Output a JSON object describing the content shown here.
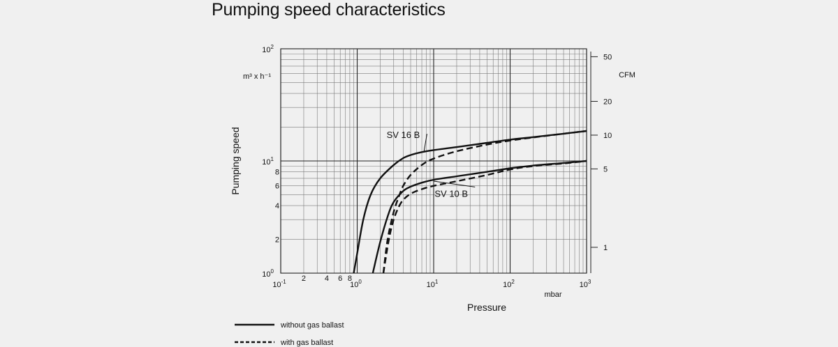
{
  "chart_data": {
    "type": "line",
    "title": "Pumping speed characteristics",
    "xlabel": "Pressure",
    "x_unit": "mbar",
    "ylabel": "Pumping speed",
    "y_unit": "m³ x h⁻¹",
    "y2_unit": "CFM",
    "x_scale": "log",
    "y_scale": "log",
    "xlim": [
      0.1,
      1000
    ],
    "ylim": [
      1,
      100
    ],
    "x_major_ticks": [
      {
        "value": 0.1,
        "base": "10",
        "exp": "-1"
      },
      {
        "value": 1,
        "base": "10",
        "exp": "0"
      },
      {
        "value": 10,
        "base": "10",
        "exp": "1"
      },
      {
        "value": 100,
        "base": "10",
        "exp": "2"
      },
      {
        "value": 1000,
        "base": "10",
        "exp": "3"
      }
    ],
    "x_minor_labels": [
      {
        "value": 0.2,
        "label": "2"
      },
      {
        "value": 0.4,
        "label": "4"
      },
      {
        "value": 0.6,
        "label": "6"
      },
      {
        "value": 0.8,
        "label": "8"
      }
    ],
    "y_major_ticks": [
      {
        "value": 1,
        "base": "10",
        "exp": "0"
      },
      {
        "value": 10,
        "base": "10",
        "exp": "1"
      },
      {
        "value": 100,
        "base": "10",
        "exp": "2"
      }
    ],
    "y_minor_labels": [
      {
        "value": 2,
        "label": "2"
      },
      {
        "value": 4,
        "label": "4"
      },
      {
        "value": 6,
        "label": "6"
      },
      {
        "value": 8,
        "label": "8"
      }
    ],
    "y2_ticks": [
      {
        "cfm": 1,
        "label": "1"
      },
      {
        "cfm": 5,
        "label": "5"
      },
      {
        "cfm": 10,
        "label": "10"
      },
      {
        "cfm": 20,
        "label": "20"
      },
      {
        "cfm": 50,
        "label": "50"
      }
    ],
    "cfm_to_m3h": 1.699,
    "grid": true,
    "series": [
      {
        "name": "SV 16 B",
        "style": "solid",
        "x": [
          0.9,
          1.0,
          1.2,
          1.5,
          2,
          3,
          4,
          5,
          7,
          10,
          20,
          50,
          100,
          200,
          500,
          1000
        ],
        "y": [
          1.0,
          1.5,
          3.0,
          5.0,
          7.0,
          9.2,
          10.6,
          11.3,
          12.0,
          12.5,
          13.3,
          14.5,
          15.5,
          16.3,
          17.5,
          18.5
        ]
      },
      {
        "name": "SV 16 B",
        "style": "dashed",
        "x": [
          2.2,
          2.5,
          3,
          3.5,
          4,
          5,
          7,
          10,
          20,
          50,
          100,
          200,
          500,
          1000
        ],
        "y": [
          1.0,
          2.0,
          3.5,
          4.8,
          6.0,
          7.5,
          9.2,
          10.5,
          12.2,
          14.0,
          15.2,
          16.2,
          17.5,
          18.5
        ]
      },
      {
        "name": "SV 10 B",
        "style": "solid",
        "x": [
          1.6,
          2,
          2.5,
          3,
          4,
          5,
          7,
          10,
          20,
          50,
          100,
          200,
          500,
          1000
        ],
        "y": [
          1.0,
          1.9,
          3.2,
          4.3,
          5.4,
          5.9,
          6.4,
          6.8,
          7.3,
          8.0,
          8.6,
          9.1,
          9.6,
          10.0
        ]
      },
      {
        "name": "SV 10 B",
        "style": "dashed",
        "x": [
          2.2,
          2.6,
          3,
          3.5,
          4,
          5,
          7,
          10,
          20,
          50,
          100,
          200,
          500,
          1000
        ],
        "y": [
          1.0,
          2.0,
          3.0,
          3.9,
          4.5,
          5.1,
          5.6,
          6.0,
          6.6,
          7.5,
          8.4,
          9.0,
          9.5,
          10.0
        ]
      }
    ],
    "annotations": [
      {
        "text": "SV 16 B",
        "x": 4.0,
        "y": 16.0,
        "arrow_to": [
          7.5,
          12.3
        ]
      },
      {
        "text": "SV 10 B",
        "x": 17.0,
        "y": 4.8,
        "arrow_to": [
          10.0,
          6.6
        ]
      }
    ],
    "legend": {
      "placement": "bottom-left",
      "entries": [
        {
          "label": "without gas ballast",
          "style": "solid"
        },
        {
          "label": "with gas ballast",
          "style": "dashed"
        }
      ]
    }
  }
}
